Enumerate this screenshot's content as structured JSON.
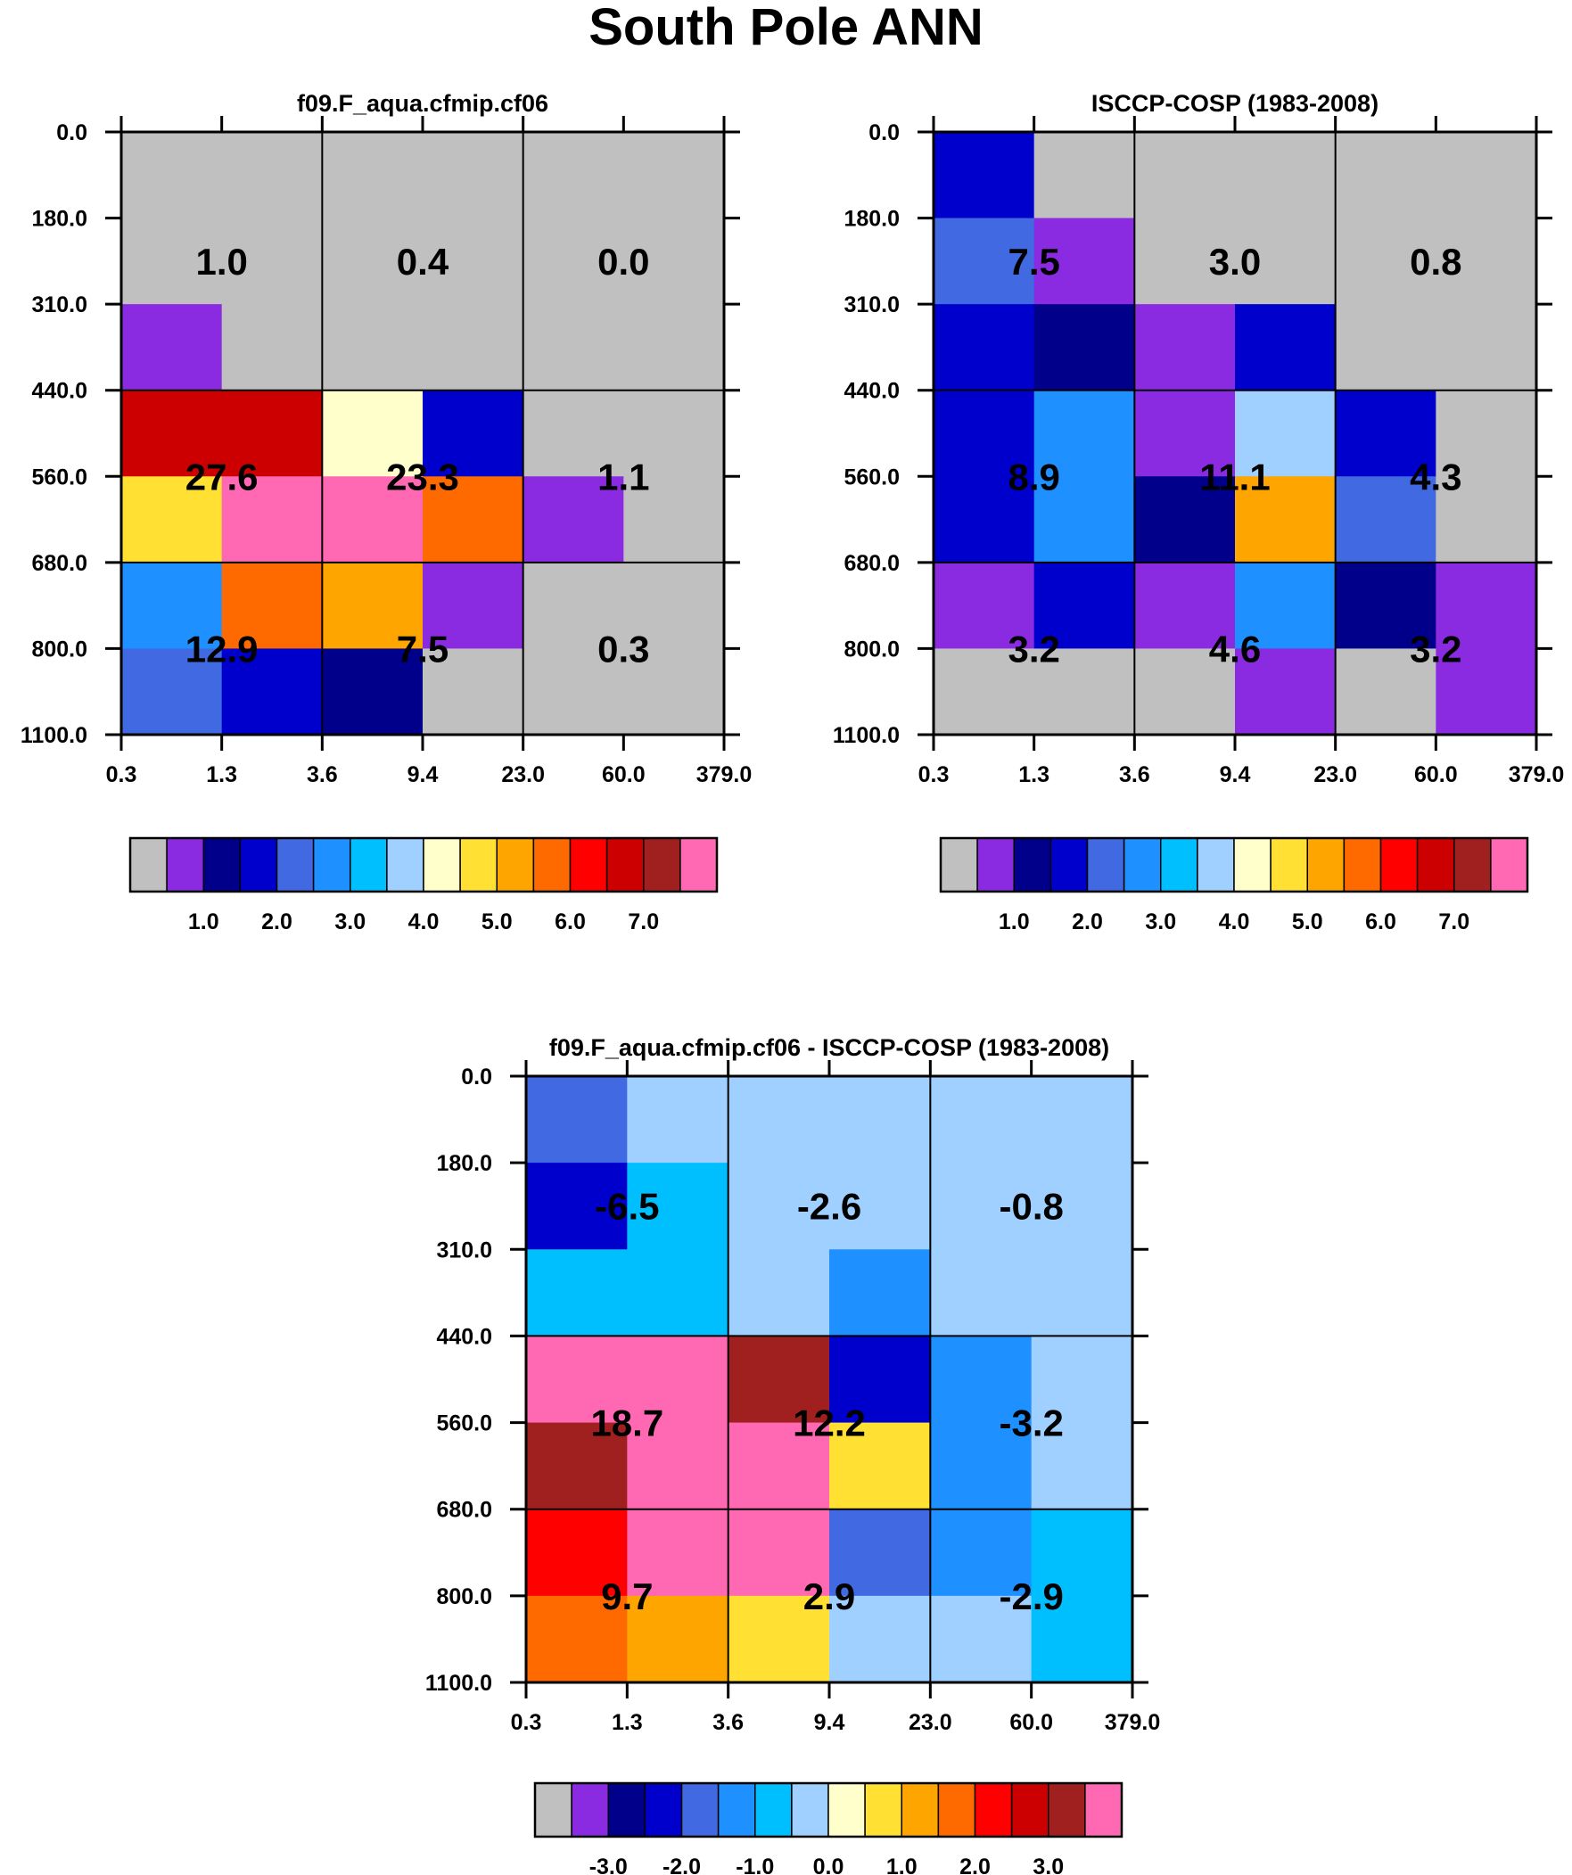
{
  "title": "South Pole ANN",
  "chart_data": [
    {
      "type": "heatmap",
      "title": "f09.F_aqua.cfmip.cf06",
      "x_ticks": [
        "0.3",
        "1.3",
        "3.6",
        "9.4",
        "23.0",
        "60.0",
        "379.0"
      ],
      "y_ticks": [
        "0.0",
        "180.0",
        "310.0",
        "440.0",
        "560.0",
        "680.0",
        "800.0",
        "1100.0"
      ],
      "cells": [
        [
          0,
          0,
          0,
          0,
          0,
          0
        ],
        [
          0,
          0,
          0,
          0,
          0,
          0
        ],
        [
          1,
          0,
          0,
          0,
          0,
          0
        ],
        [
          13,
          13,
          8,
          3,
          0,
          0
        ],
        [
          9,
          15,
          15,
          11,
          1,
          0
        ],
        [
          5,
          11,
          10,
          1,
          0,
          0
        ],
        [
          4,
          3,
          2,
          0,
          0,
          0
        ]
      ],
      "sums": [
        [
          "1.0",
          "0.4",
          "0.0"
        ],
        [
          "27.6",
          "23.3",
          "1.1"
        ],
        [
          "12.9",
          "7.5",
          "0.3"
        ]
      ],
      "colorbar_labels": [
        "1.0",
        "2.0",
        "3.0",
        "4.0",
        "5.0",
        "6.0",
        "7.0"
      ]
    },
    {
      "type": "heatmap",
      "title": "ISCCP-COSP (1983-2008)",
      "x_ticks": [
        "0.3",
        "1.3",
        "3.6",
        "9.4",
        "23.0",
        "60.0",
        "379.0"
      ],
      "y_ticks": [
        "0.0",
        "180.0",
        "310.0",
        "440.0",
        "560.0",
        "680.0",
        "800.0",
        "1100.0"
      ],
      "cells": [
        [
          3,
          0,
          0,
          0,
          0,
          0
        ],
        [
          4,
          1,
          0,
          0,
          0,
          0
        ],
        [
          3,
          2,
          1,
          3,
          0,
          0
        ],
        [
          3,
          5,
          1,
          7,
          3,
          0
        ],
        [
          3,
          5,
          2,
          10,
          4,
          0
        ],
        [
          1,
          3,
          1,
          5,
          2,
          1
        ],
        [
          0,
          0,
          0,
          1,
          0,
          1
        ]
      ],
      "sums": [
        [
          "7.5",
          "3.0",
          "0.8"
        ],
        [
          "8.9",
          "11.1",
          "4.3"
        ],
        [
          "3.2",
          "4.6",
          "3.2"
        ]
      ],
      "colorbar_labels": [
        "1.0",
        "2.0",
        "3.0",
        "4.0",
        "5.0",
        "6.0",
        "7.0"
      ]
    },
    {
      "type": "heatmap",
      "title": "f09.F_aqua.cfmip.cf06 - ISCCP-COSP (1983-2008)",
      "x_ticks": [
        "0.3",
        "1.3",
        "3.6",
        "9.4",
        "23.0",
        "60.0",
        "379.0"
      ],
      "y_ticks": [
        "0.0",
        "180.0",
        "310.0",
        "440.0",
        "560.0",
        "680.0",
        "800.0",
        "1100.0"
      ],
      "cells": [
        [
          4,
          7,
          7,
          7,
          7,
          7
        ],
        [
          3,
          6,
          7,
          7,
          7,
          7
        ],
        [
          6,
          6,
          7,
          5,
          7,
          7
        ],
        [
          15,
          15,
          14,
          3,
          5,
          7
        ],
        [
          14,
          15,
          15,
          9,
          5,
          7
        ],
        [
          12,
          15,
          15,
          4,
          5,
          6
        ],
        [
          11,
          10,
          9,
          7,
          7,
          6
        ]
      ],
      "sums": [
        [
          "-6.5",
          "-2.6",
          "-0.8"
        ],
        [
          "18.7",
          "12.2",
          "-3.2"
        ],
        [
          "9.7",
          "2.9",
          "-2.9"
        ]
      ],
      "colorbar_labels": [
        "-3.0",
        "-2.0",
        "-1.0",
        "0.0",
        "1.0",
        "2.0",
        "3.0"
      ]
    }
  ],
  "palette": [
    "#c0c0c0",
    "#8a2be2",
    "#00008b",
    "#0000cd",
    "#4169e1",
    "#1e90ff",
    "#00bfff",
    "#a0d0ff",
    "#ffffcc",
    "#ffe033",
    "#ffa500",
    "#ff6a00",
    "#ff0000",
    "#cc0000",
    "#a02020",
    "#ff69b4"
  ]
}
